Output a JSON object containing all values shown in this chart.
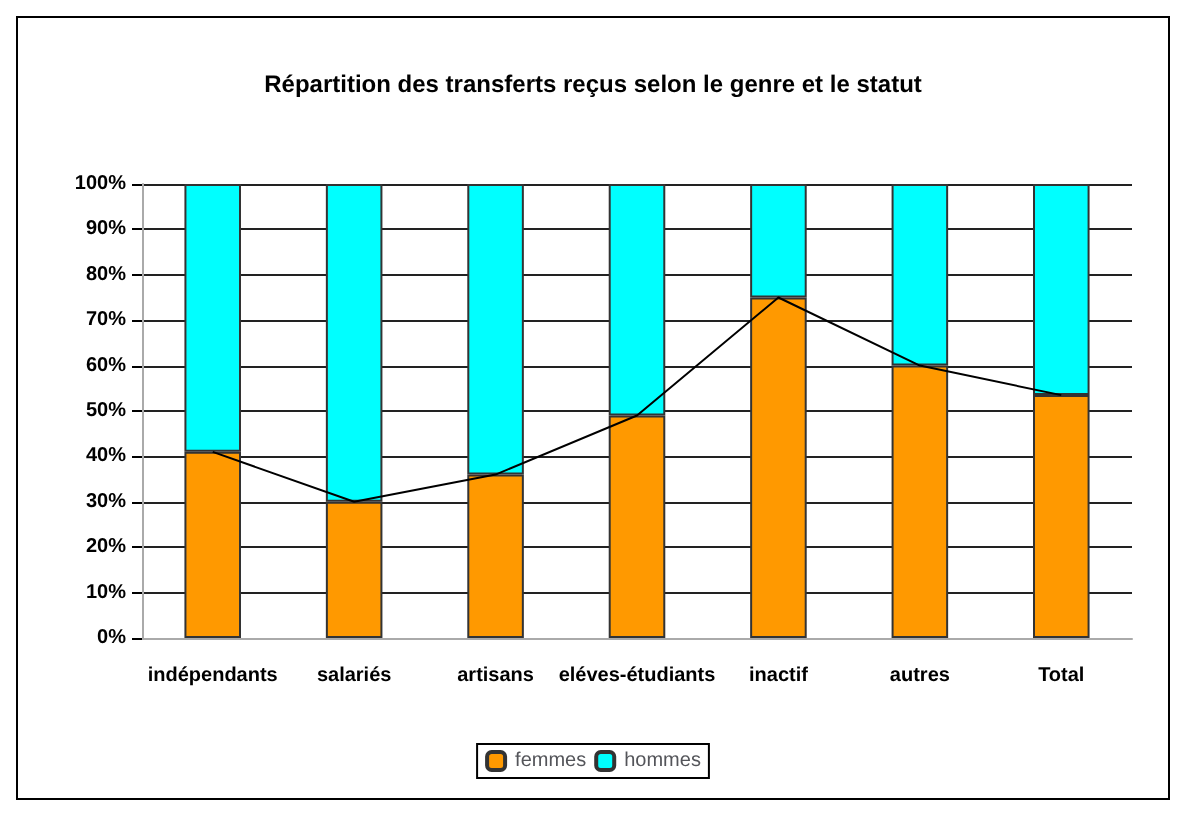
{
  "chart_data": {
    "type": "bar",
    "title": "Répartition des transferts reçus selon le genre et le statut",
    "categories": [
      "indépendants",
      "salariés",
      "artisans",
      "eléves-étudiants",
      "inactif",
      "autres",
      "Total"
    ],
    "stacked": true,
    "series": [
      {
        "name": "femmes",
        "color": "#ff9900",
        "values": [
          41,
          30,
          36,
          49,
          75,
          60,
          53.5
        ]
      },
      {
        "name": "hommes",
        "color": "#00ffff",
        "values": [
          59,
          70,
          64,
          51,
          25,
          40,
          46.5
        ]
      },
      {
        "type": "line",
        "color": "#000000",
        "values": [
          41,
          30,
          36,
          49,
          75,
          60,
          53.5
        ]
      }
    ],
    "ylim": [
      0,
      100
    ],
    "yticks": [
      {
        "value": 0,
        "label": "0%"
      },
      {
        "value": 10,
        "label": "10%"
      },
      {
        "value": 20,
        "label": "20%"
      },
      {
        "value": 30,
        "label": "30%"
      },
      {
        "value": 40,
        "label": "40%"
      },
      {
        "value": 50,
        "label": "50%"
      },
      {
        "value": 60,
        "label": "60%"
      },
      {
        "value": 70,
        "label": "70%"
      },
      {
        "value": 80,
        "label": "80%"
      },
      {
        "value": 90,
        "label": "90%"
      },
      {
        "value": 100,
        "label": "100%"
      }
    ],
    "grid": "y",
    "legend": "bottom",
    "marker": "none"
  }
}
